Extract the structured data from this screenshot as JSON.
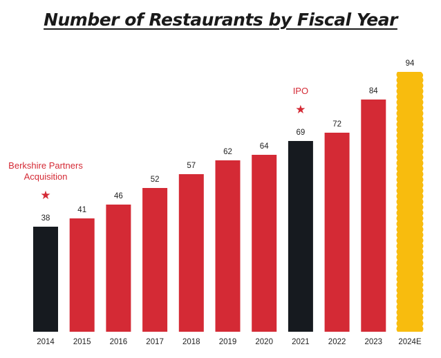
{
  "chart_data": {
    "type": "bar",
    "title": "Number of Restaurants by Fiscal Year",
    "categories": [
      "2014",
      "2015",
      "2016",
      "2017",
      "2018",
      "2019",
      "2020",
      "2021",
      "2022",
      "2023",
      "2024E"
    ],
    "values": [
      38,
      41,
      46,
      52,
      57,
      62,
      64,
      69,
      72,
      84,
      94
    ],
    "bar_colors": [
      "#161a1f",
      "#d42a35",
      "#d42a35",
      "#d42a35",
      "#d42a35",
      "#d42a35",
      "#d42a35",
      "#161a1f",
      "#d42a35",
      "#d42a35",
      "#f8bc0e"
    ],
    "estimate_style": "wavy-edge",
    "ylim": [
      0,
      100
    ],
    "grid": false,
    "xlabel": "",
    "ylabel": "",
    "annotations": [
      {
        "category": "2014",
        "lines": [
          "Berkshire Partners",
          "Acquisition"
        ],
        "marker": "★"
      },
      {
        "category": "2021",
        "lines": [
          "IPO"
        ],
        "marker": "★"
      }
    ]
  }
}
